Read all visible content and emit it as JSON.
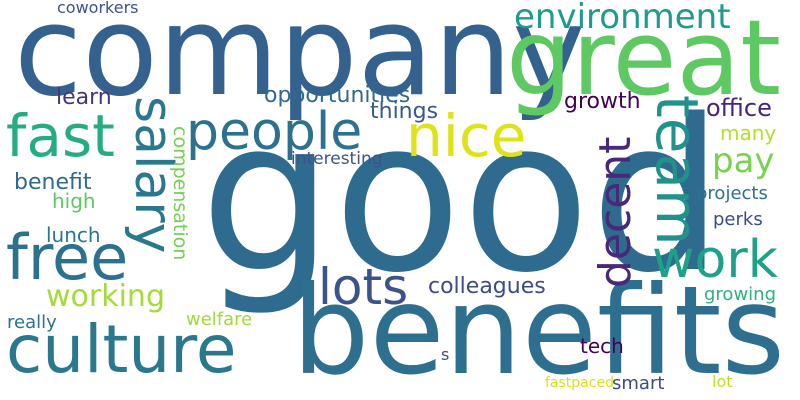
{
  "words": [
    {
      "key": "good",
      "text": "good",
      "color": "#2f6b8e"
    },
    {
      "key": "company",
      "text": "company",
      "color": "#34618d"
    },
    {
      "key": "benefits",
      "text": "benefits",
      "color": "#2e6e8e"
    },
    {
      "key": "great",
      "text": "great",
      "color": "#5ec962"
    },
    {
      "key": "culture",
      "text": "culture",
      "color": "#2a788e"
    },
    {
      "key": "people",
      "text": "people",
      "color": "#2c728e"
    },
    {
      "key": "nice",
      "text": "nice",
      "color": "#dde318"
    },
    {
      "key": "fast",
      "text": "fast",
      "color": "#25ac82"
    },
    {
      "key": "salary",
      "text": "salary",
      "color": "#2a788e"
    },
    {
      "key": "team",
      "text": "team",
      "color": "#21918c"
    },
    {
      "key": "free",
      "text": "free",
      "color": "#2c728e"
    },
    {
      "key": "work",
      "text": "work",
      "color": "#1fa088"
    },
    {
      "key": "lots",
      "text": "lots",
      "color": "#3b528b"
    },
    {
      "key": "decent",
      "text": "decent",
      "color": "#482878"
    },
    {
      "key": "environment",
      "text": "environment",
      "color": "#1e9b8a"
    },
    {
      "key": "working",
      "text": "working",
      "color": "#a5db36"
    },
    {
      "key": "pay",
      "text": "pay",
      "color": "#7ad151"
    },
    {
      "key": "opportunities",
      "text": "opportunities",
      "color": "#31688e"
    },
    {
      "key": "colleagues",
      "text": "colleagues",
      "color": "#3e4a89"
    },
    {
      "key": "learn",
      "text": "learn",
      "color": "#453581"
    },
    {
      "key": "things",
      "text": "things",
      "color": "#38598c"
    },
    {
      "key": "growth",
      "text": "growth",
      "color": "#440154"
    },
    {
      "key": "office",
      "text": "office",
      "color": "#482475"
    },
    {
      "key": "compensation",
      "text": "compensation",
      "color": "#75d054"
    },
    {
      "key": "benefit",
      "text": "benefit",
      "color": "#306a8e"
    },
    {
      "key": "high",
      "text": "high",
      "color": "#5ec962"
    },
    {
      "key": "lunch",
      "text": "lunch",
      "color": "#2a788e"
    },
    {
      "key": "coworkers",
      "text": "coworkers",
      "color": "#3b528b"
    },
    {
      "key": "interesting",
      "text": "interesting",
      "color": "#3b528b"
    },
    {
      "key": "many",
      "text": "many",
      "color": "#b5de2b"
    },
    {
      "key": "projects",
      "text": "projects",
      "color": "#2c728e"
    },
    {
      "key": "perks",
      "text": "perks",
      "color": "#3e4989"
    },
    {
      "key": "growing",
      "text": "growing",
      "color": "#2db27d"
    },
    {
      "key": "really",
      "text": "really",
      "color": "#2c728e"
    },
    {
      "key": "welfare",
      "text": "welfare",
      "color": "#a0da39"
    },
    {
      "key": "tech",
      "text": "tech",
      "color": "#440154"
    },
    {
      "key": "smart",
      "text": "smart",
      "color": "#3e4989"
    },
    {
      "key": "fastpaced",
      "text": "fastpaced",
      "color": "#d8e219"
    },
    {
      "key": "lot",
      "text": "lot",
      "color": "#c2df23"
    },
    {
      "key": "s",
      "text": "s",
      "color": "#3e4989"
    }
  ]
}
